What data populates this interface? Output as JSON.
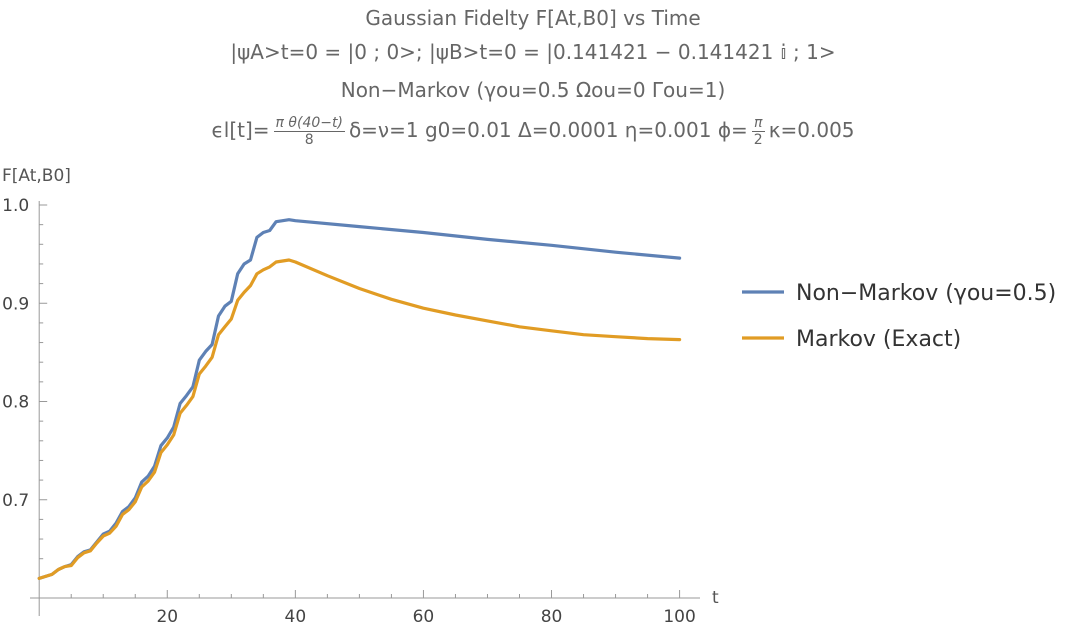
{
  "chart_data": {
    "type": "line",
    "title_lines": [
      "Gaussian Fidelty F[At,B0] vs Time",
      "|ψA>t=0 = |0 ; 0>; |ψB>t=0 = |0.141421 − 0.141421 𝕚 ; 1>",
      "Non−Markov (γou=0.5  Ωou=0 Γou=1)"
    ],
    "params_line": {
      "prefix": "ϵl[t]=",
      "frac_num": "π θ(40−t)",
      "frac_den": "8",
      "middle": "δ=ν=1 g0=0.01 Δ=0.0001 η=0.001 ϕ=",
      "frac2_num": "π",
      "frac2_den": "2",
      "suffix": "κ=0.005"
    },
    "xlabel": "t",
    "ylabel": "F[At,B0]",
    "xlim": [
      -0.5,
      101
    ],
    "ylim": [
      0.6,
      1.0
    ],
    "xticks": [
      20,
      40,
      60,
      80,
      100
    ],
    "yticks": [
      0.7,
      0.8,
      0.9,
      1.0
    ],
    "xtick_labels": [
      "20",
      "40",
      "60",
      "80",
      "100"
    ],
    "ytick_labels": [
      "0.7",
      "0.8",
      "0.9",
      "1.0"
    ],
    "legend": "right",
    "series": [
      {
        "name": "Non−Markov (γou=0.5)",
        "color": "#5e81b5",
        "x": [
          0,
          1,
          2,
          3,
          4,
          5,
          6,
          7,
          8,
          9,
          10,
          11,
          12,
          13,
          14,
          15,
          16,
          17,
          18,
          19,
          20,
          21,
          22,
          23,
          24,
          25,
          26,
          27,
          28,
          29,
          30,
          31,
          32,
          33,
          34,
          35,
          36,
          37,
          38,
          39,
          40,
          50,
          60,
          70,
          80,
          90,
          100
        ],
        "y": [
          0.62,
          0.622,
          0.624,
          0.629,
          0.632,
          0.634,
          0.642,
          0.647,
          0.649,
          0.657,
          0.665,
          0.668,
          0.676,
          0.688,
          0.693,
          0.702,
          0.718,
          0.724,
          0.734,
          0.755,
          0.763,
          0.774,
          0.798,
          0.806,
          0.815,
          0.842,
          0.851,
          0.858,
          0.887,
          0.897,
          0.902,
          0.93,
          0.94,
          0.944,
          0.967,
          0.972,
          0.974,
          0.983,
          0.984,
          0.985,
          0.984,
          0.978,
          0.972,
          0.965,
          0.959,
          0.952,
          0.946
        ]
      },
      {
        "name": "Markov (Exact)",
        "color": "#e19c24",
        "x": [
          0,
          1,
          2,
          3,
          4,
          5,
          6,
          7,
          8,
          9,
          10,
          11,
          12,
          13,
          14,
          15,
          16,
          17,
          18,
          19,
          20,
          21,
          22,
          23,
          24,
          25,
          26,
          27,
          28,
          29,
          30,
          31,
          32,
          33,
          34,
          35,
          36,
          37,
          38,
          39,
          40,
          45,
          50,
          55,
          60,
          65,
          70,
          75,
          80,
          85,
          90,
          95,
          100
        ],
        "y": [
          0.62,
          0.622,
          0.624,
          0.629,
          0.632,
          0.633,
          0.641,
          0.646,
          0.648,
          0.656,
          0.663,
          0.666,
          0.673,
          0.685,
          0.69,
          0.698,
          0.713,
          0.719,
          0.728,
          0.748,
          0.756,
          0.766,
          0.788,
          0.796,
          0.805,
          0.828,
          0.836,
          0.845,
          0.868,
          0.876,
          0.884,
          0.903,
          0.911,
          0.918,
          0.93,
          0.934,
          0.937,
          0.942,
          0.943,
          0.944,
          0.942,
          0.928,
          0.915,
          0.904,
          0.895,
          0.888,
          0.882,
          0.876,
          0.872,
          0.868,
          0.866,
          0.864,
          0.863
        ]
      }
    ]
  }
}
